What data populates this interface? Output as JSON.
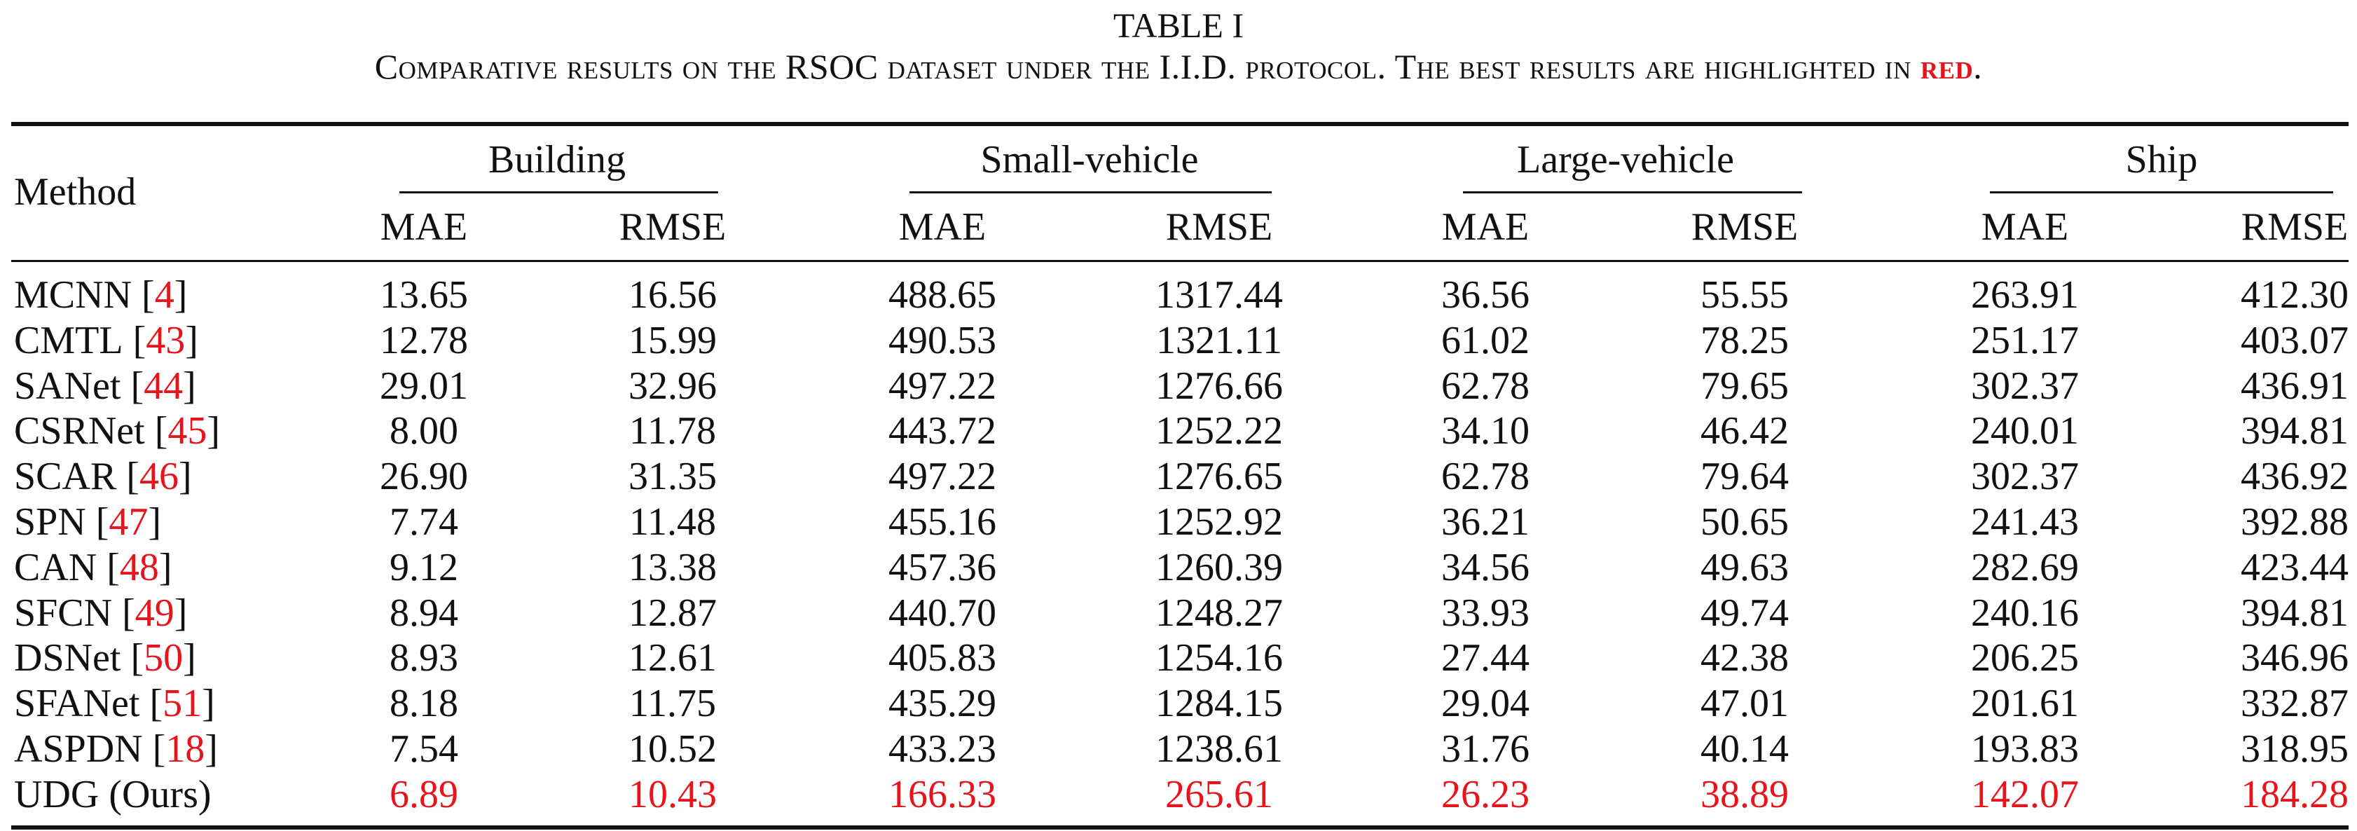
{
  "caption": {
    "title": "TABLE I",
    "text_before": "Comparative results on the RSOC dataset under the I.I.D. protocol. The best results are highlighted in ",
    "red_word": "red",
    "text_after": "."
  },
  "table": {
    "method_header": "Method",
    "groups": [
      "Building",
      "Small-vehicle",
      "Large-vehicle",
      "Ship"
    ],
    "metrics": [
      "MAE",
      "RMSE",
      "MAE",
      "RMSE",
      "MAE",
      "RMSE",
      "MAE",
      "RMSE"
    ],
    "rows": [
      {
        "name": "MCNN",
        "ref": "4",
        "values": [
          "13.65",
          "16.56",
          "488.65",
          "1317.44",
          "36.56",
          "55.55",
          "263.91",
          "412.30"
        ],
        "best": false
      },
      {
        "name": "CMTL",
        "ref": "43",
        "values": [
          "12.78",
          "15.99",
          "490.53",
          "1321.11",
          "61.02",
          "78.25",
          "251.17",
          "403.07"
        ],
        "best": false
      },
      {
        "name": "SANet",
        "ref": "44",
        "values": [
          "29.01",
          "32.96",
          "497.22",
          "1276.66",
          "62.78",
          "79.65",
          "302.37",
          "436.91"
        ],
        "best": false
      },
      {
        "name": "CSRNet",
        "ref": "45",
        "values": [
          "8.00",
          "11.78",
          "443.72",
          "1252.22",
          "34.10",
          "46.42",
          "240.01",
          "394.81"
        ],
        "best": false
      },
      {
        "name": "SCAR",
        "ref": "46",
        "values": [
          "26.90",
          "31.35",
          "497.22",
          "1276.65",
          "62.78",
          "79.64",
          "302.37",
          "436.92"
        ],
        "best": false
      },
      {
        "name": "SPN",
        "ref": "47",
        "values": [
          "7.74",
          "11.48",
          "455.16",
          "1252.92",
          "36.21",
          "50.65",
          "241.43",
          "392.88"
        ],
        "best": false
      },
      {
        "name": "CAN",
        "ref": "48",
        "values": [
          "9.12",
          "13.38",
          "457.36",
          "1260.39",
          "34.56",
          "49.63",
          "282.69",
          "423.44"
        ],
        "best": false
      },
      {
        "name": "SFCN",
        "ref": "49",
        "values": [
          "8.94",
          "12.87",
          "440.70",
          "1248.27",
          "33.93",
          "49.74",
          "240.16",
          "394.81"
        ],
        "best": false
      },
      {
        "name": "DSNet",
        "ref": "50",
        "values": [
          "8.93",
          "12.61",
          "405.83",
          "1254.16",
          "27.44",
          "42.38",
          "206.25",
          "346.96"
        ],
        "best": false
      },
      {
        "name": "SFANet",
        "ref": "51",
        "values": [
          "8.18",
          "11.75",
          "435.29",
          "1284.15",
          "29.04",
          "47.01",
          "201.61",
          "332.87"
        ],
        "best": false
      },
      {
        "name": "ASPDN",
        "ref": "18",
        "values": [
          "7.54",
          "10.52",
          "433.23",
          "1238.61",
          "31.76",
          "40.14",
          "193.83",
          "318.95"
        ],
        "best": false
      },
      {
        "name": "UDG (Ours)",
        "ref": "",
        "values": [
          "6.89",
          "10.43",
          "166.33",
          "265.61",
          "26.23",
          "38.89",
          "142.07",
          "184.28"
        ],
        "best": true
      }
    ]
  },
  "colors": {
    "highlight": "#e8141c",
    "text": "#111111",
    "background": "#ffffff"
  }
}
